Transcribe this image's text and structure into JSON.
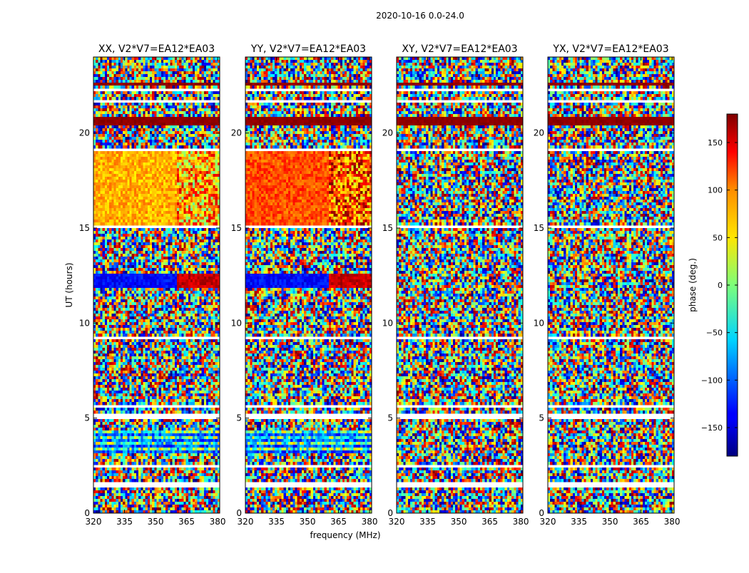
{
  "figure": {
    "title": "2020-10-16 0.0-24.0",
    "xlabel": "frequency (MHz)",
    "ylabel": "UT (hours)",
    "colorbar_label": "phase (deg.)"
  },
  "chart_data": {
    "type": "heatmap",
    "title": "2020-10-16 0.0-24.0",
    "xlabel": "frequency (MHz)",
    "ylabel": "UT (hours)",
    "x_range": [
      320,
      381
    ],
    "y_range": [
      0,
      24
    ],
    "x_ticks": [
      320,
      335,
      350,
      365,
      380
    ],
    "y_ticks": [
      0,
      5,
      10,
      15,
      20
    ],
    "colormap": "jet",
    "colorbar": {
      "label": "phase (deg.)",
      "range": [
        -180,
        180
      ],
      "ticks": [
        -150,
        -100,
        -50,
        0,
        50,
        100,
        150
      ]
    },
    "panels": [
      {
        "title": "XX, V2*V7=EA12*EA03",
        "correlation": "parallel"
      },
      {
        "title": "YY, V2*V7=EA12*EA03",
        "correlation": "parallel"
      },
      {
        "title": "XY, V2*V7=EA12*EA03",
        "correlation": "cross"
      },
      {
        "title": "YX, V2*V7=EA12*EA03",
        "correlation": "cross"
      }
    ],
    "white_gaps_ut": [
      [
        1.3,
        1.6
      ],
      [
        2.4,
        2.6
      ],
      [
        4.9,
        5.3
      ],
      [
        5.55,
        5.65
      ],
      [
        9.2,
        9.3
      ],
      [
        10.3,
        10.4
      ],
      [
        14.95,
        15.15
      ],
      [
        15.4,
        15.5
      ],
      [
        19.05,
        19.2
      ],
      [
        21.6,
        21.7
      ],
      [
        22.2,
        22.35
      ],
      [
        23.2,
        23.3
      ]
    ],
    "dark_bands_ut": [
      [
        20.4,
        20.9
      ],
      [
        2.95,
        3.05
      ],
      [
        22.5,
        22.58
      ]
    ]
  }
}
